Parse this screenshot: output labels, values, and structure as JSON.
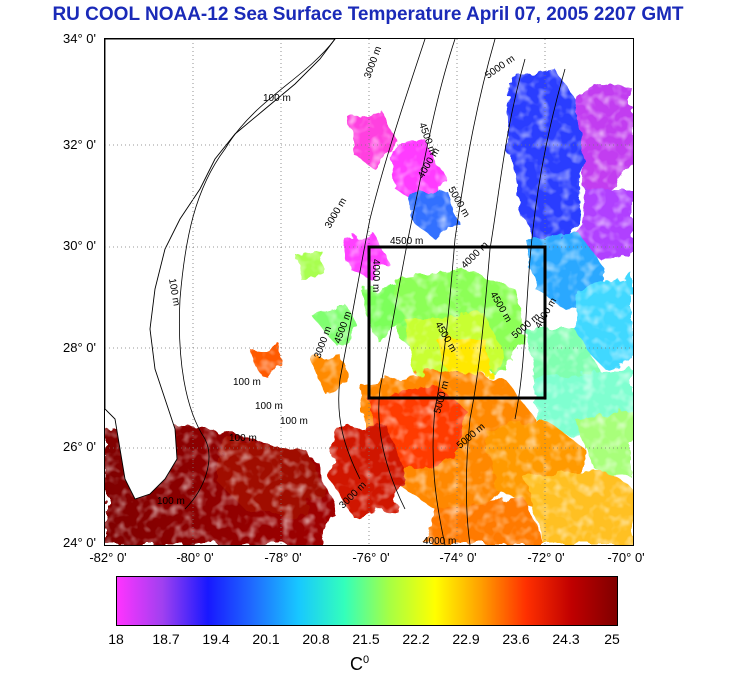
{
  "title": "RU COOL  NOAA-12 Sea Surface Temperature April 07, 2005 2207 GMT",
  "map": {
    "lat_labels": [
      "34° 0'",
      "32° 0'",
      "30° 0'",
      "28° 0'",
      "26° 0'",
      "24° 0'"
    ],
    "lon_labels": [
      "-82° 0'",
      "-80° 0'",
      "-78° 0'",
      "-76° 0'",
      "-74° 0'",
      "-72° 0'",
      "-70° 0'"
    ],
    "contour_labels": [
      "100 m",
      "100 m",
      "100 m",
      "100 m",
      "100 m",
      "100 m",
      "100 m",
      "3000 m",
      "3000 m",
      "3000 m",
      "4000 m",
      "4000 m",
      "4500 m",
      "4500 m",
      "5000 m",
      "5000 m",
      "5000 m",
      "4500 m",
      "4000 m",
      "4500 m",
      "5000 m",
      "4000 m",
      "4500 m",
      "5000 m",
      "4000 m",
      "3000 m"
    ],
    "study_box": {
      "lon_min": -76,
      "lon_max": -72,
      "lat_min": 27,
      "lat_max": 30
    }
  },
  "colorbar": {
    "ticks": [
      "18",
      "18.7",
      "19.4",
      "20.1",
      "20.8",
      "21.5",
      "22.2",
      "22.9",
      "23.6",
      "24.3",
      "25"
    ],
    "unit_base": "C",
    "unit_sup": "0",
    "colors": [
      "#ff33ff",
      "#a040f0",
      "#1818ff",
      "#1f6cff",
      "#18c8ff",
      "#33ffbb",
      "#a6ff44",
      "#ffff00",
      "#ffa000",
      "#ff3000",
      "#c00000",
      "#800000"
    ]
  }
}
